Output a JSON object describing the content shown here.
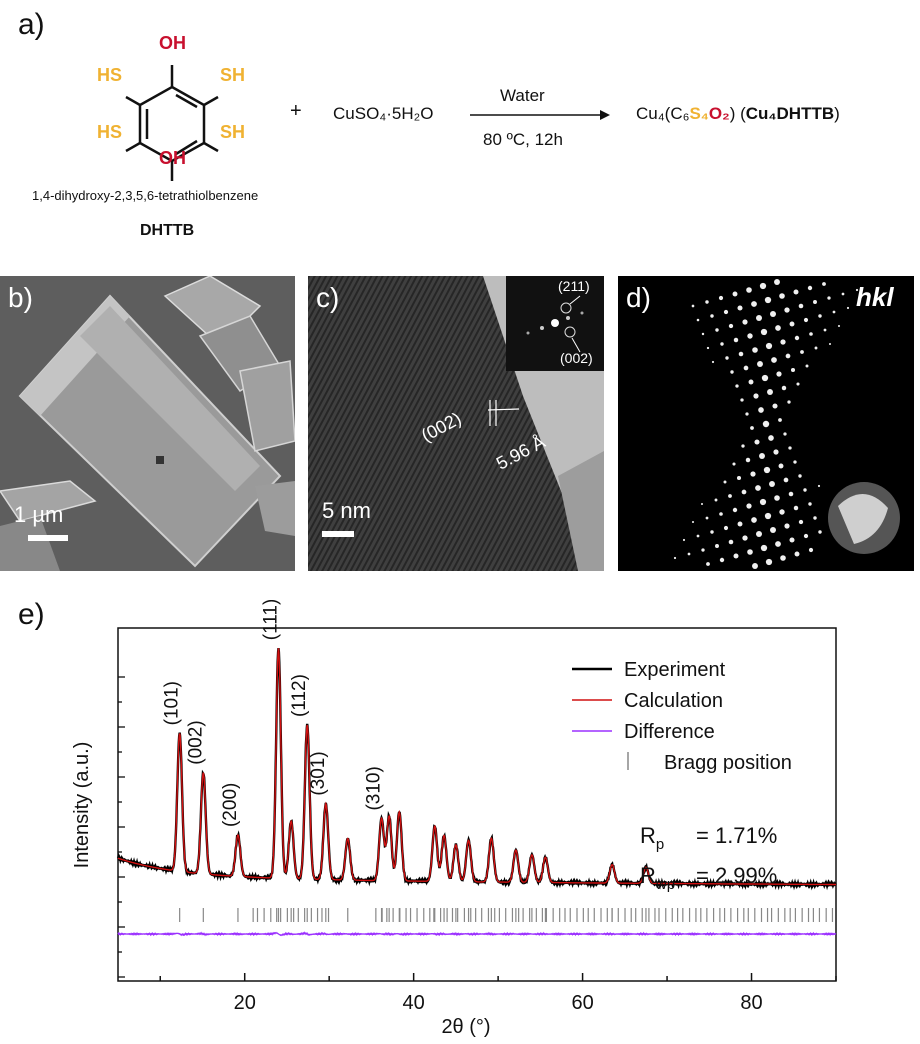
{
  "panel_a": {
    "letter": "a)",
    "molecule": {
      "oh_top": "OH",
      "oh_bottom": "OH",
      "sh_tl": "HS",
      "sh_tr": "SH",
      "sh_bl": "HS",
      "sh_br": "SH",
      "name": "1,4-dihydroxy-2,3,5,6-tetrathiolbenzene",
      "abbr": "DHTTB"
    },
    "plus": "+",
    "reagent": "CuSO₄·5H₂O",
    "arrow_top": "Water",
    "arrow_bottom": "80 ºC, 12h",
    "product_prefix": "Cu₄(C₆",
    "product_s": "S₄",
    "product_o": "O₂",
    "product_close": ") (",
    "product_bold": "Cu₄DHTTB",
    "product_end": ")",
    "colors": {
      "oh": "#c8102e",
      "sh": "#f0b232"
    }
  },
  "panel_b": {
    "letter": "b)",
    "scale_label": "1 µm"
  },
  "panel_c": {
    "letter": "c)",
    "scale_label": "5 nm",
    "lattice_label": "(002)",
    "spacing_label": "5.96 Å",
    "inset_211": "(211)",
    "inset_002": "(002)"
  },
  "panel_d": {
    "letter": "d)",
    "hkl_label": "hkl"
  },
  "panel_e": {
    "letter": "e)"
  },
  "chart_data": {
    "type": "line",
    "xlabel": "2θ (°)",
    "ylabel": "Intensity (a.u.)",
    "xlim": [
      5,
      90
    ],
    "x_ticks": [
      20,
      40,
      60,
      80
    ],
    "legend": [
      "Experiment",
      "Calculation",
      "Difference",
      "Bragg position"
    ],
    "legend_placement": "top-right",
    "colors": {
      "experiment": "#000000",
      "calculation": "#d11010",
      "difference": "#9b30ff",
      "bragg": "#888888"
    },
    "stats": {
      "rp": "= 1.71%",
      "rwp": "= 2.99%"
    },
    "peaks": [
      {
        "label": "(101)",
        "x": 12.3,
        "height": 0.6
      },
      {
        "label": "(002)",
        "x": 15.1,
        "height": 0.44
      },
      {
        "label": "(200)",
        "x": 19.2,
        "height": 0.18
      },
      {
        "label": "(111)",
        "x": 24.0,
        "height": 1.0
      },
      {
        "label": "(112)",
        "x": 27.4,
        "height": 0.67
      },
      {
        "label": "(301)",
        "x": 29.6,
        "height": 0.33
      },
      {
        "label": "(310)",
        "x": 36.2,
        "height": 0.27
      }
    ],
    "minor_peaks": [
      {
        "x": 25.5,
        "height": 0.25
      },
      {
        "x": 32.2,
        "height": 0.18
      },
      {
        "x": 37.1,
        "height": 0.28
      },
      {
        "x": 38.3,
        "height": 0.3
      },
      {
        "x": 42.5,
        "height": 0.24
      },
      {
        "x": 43.6,
        "height": 0.2
      },
      {
        "x": 45.0,
        "height": 0.16
      },
      {
        "x": 46.5,
        "height": 0.18
      },
      {
        "x": 49.2,
        "height": 0.19
      },
      {
        "x": 52.1,
        "height": 0.14
      },
      {
        "x": 54.0,
        "height": 0.12
      },
      {
        "x": 55.6,
        "height": 0.11
      },
      {
        "x": 63.5,
        "height": 0.08
      },
      {
        "x": 67.5,
        "height": 0.07
      }
    ]
  }
}
